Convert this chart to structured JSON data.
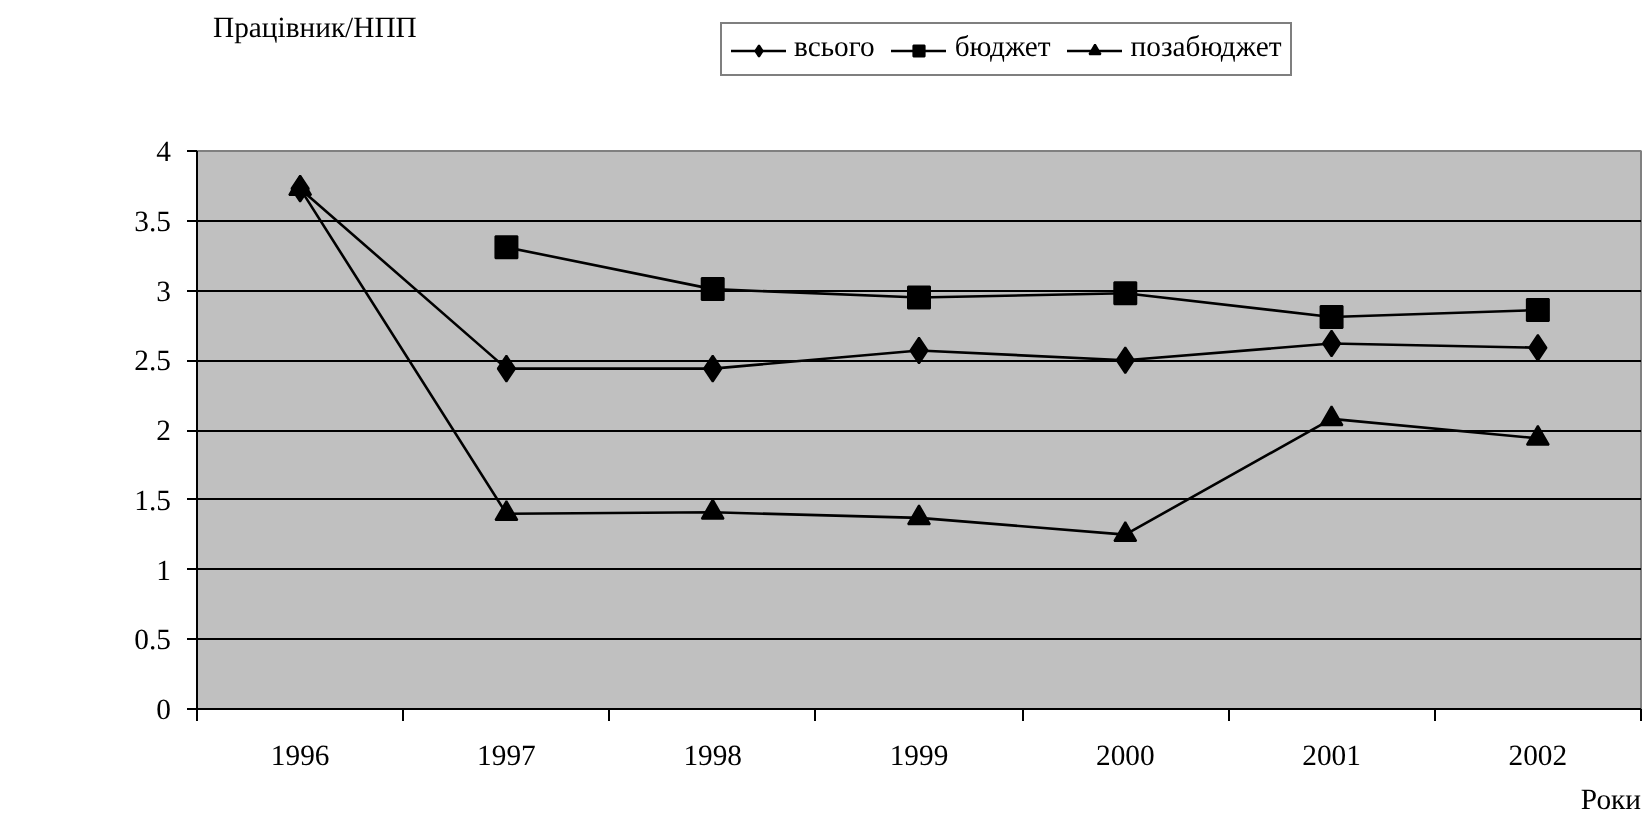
{
  "chart_data": {
    "type": "line",
    "ylabel": "Працівник/НПП",
    "xlabel": "Роки",
    "categories": [
      "1996",
      "1997",
      "1998",
      "1999",
      "2000",
      "2001",
      "2002"
    ],
    "series": [
      {
        "name": "всього",
        "color": "#000000",
        "marker": "diamond",
        "values": [
          3.73,
          2.44,
          2.44,
          2.57,
          2.5,
          2.62,
          2.59
        ]
      },
      {
        "name": "бюджет",
        "color": "#000000",
        "marker": "square",
        "values": [
          null,
          3.31,
          3.01,
          2.95,
          2.98,
          2.81,
          2.86
        ]
      },
      {
        "name": "позабюджет",
        "color": "#000000",
        "marker": "triangle",
        "values": [
          3.73,
          1.4,
          1.41,
          1.37,
          1.25,
          2.08,
          1.94
        ]
      }
    ],
    "ylim": [
      0,
      4
    ],
    "yticks": [
      0,
      0.5,
      1,
      1.5,
      2,
      2.5,
      3,
      3.5,
      4
    ],
    "grid": "y",
    "legend": "top"
  }
}
